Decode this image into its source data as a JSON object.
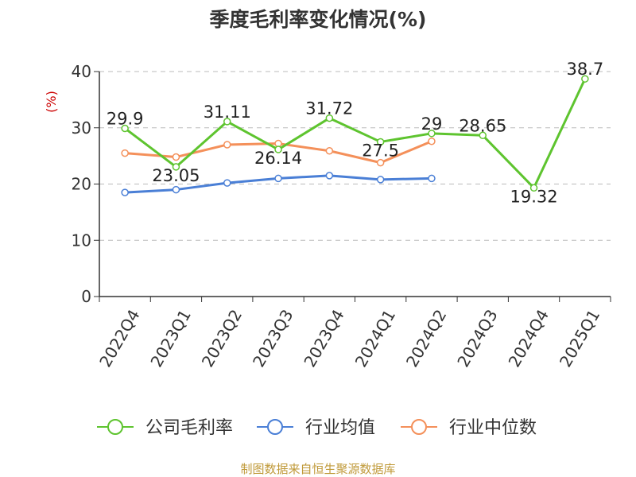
{
  "chart_data": {
    "type": "line",
    "title": "季度毛利率变化情况(%)",
    "ylabel": "(%)",
    "ylim": [
      0,
      40
    ],
    "yticks": [
      0,
      10,
      20,
      30,
      40
    ],
    "grid": true,
    "legend_position": "bottom",
    "categories": [
      "2022Q4",
      "2023Q1",
      "2023Q2",
      "2023Q3",
      "2023Q4",
      "2024Q1",
      "2024Q2",
      "2024Q3",
      "2024Q4",
      "2025Q1"
    ],
    "series": [
      {
        "name": "公司毛利率",
        "color": "#5ec42f",
        "values": [
          29.9,
          23.05,
          31.11,
          26.14,
          31.72,
          27.5,
          29,
          28.65,
          19.32,
          38.7
        ],
        "labels": [
          "29.9",
          "23.05",
          "31.11",
          "26.14",
          "31.72",
          "27.5",
          "29",
          "28.65",
          "19.32",
          "38.7"
        ]
      },
      {
        "name": "行业均值",
        "color": "#4a7fd6",
        "values": [
          18.5,
          19.0,
          20.2,
          21.0,
          21.5,
          20.8,
          21.0,
          null,
          null,
          null
        ]
      },
      {
        "name": "行业中位数",
        "color": "#f4905a",
        "values": [
          25.5,
          24.8,
          27.0,
          27.2,
          25.9,
          23.8,
          27.6,
          null,
          null,
          null
        ]
      }
    ]
  },
  "colors": {
    "axis": "#333333",
    "grid": "#bbbbbb",
    "ylabel": "#cc0000",
    "source": "#c09a3a"
  },
  "footer": {
    "source": "制图数据来自恒生聚源数据库"
  }
}
